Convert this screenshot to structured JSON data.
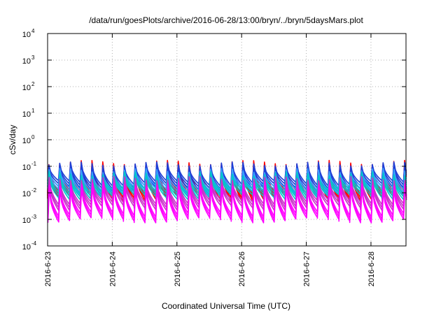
{
  "chart_data": {
    "type": "line",
    "title": "/data/run/goesPlots/archive/2016-06-28/13:00/bryn/../bryn/5daysMars.plot",
    "xlabel": "Coordinated Universal Time (UTC)",
    "ylabel": "cSv/day",
    "yscale": "log",
    "ylim": [
      0.0001,
      10000
    ],
    "xlim": [
      "2016-06-23 00:00",
      "2016-06-28 13:00"
    ],
    "grid": true,
    "x_ticks": [
      "2016-6-23",
      "2016-6-24",
      "2016-6-25",
      "2016-6-26",
      "2016-6-27",
      "2016-6-28"
    ],
    "y_ticks": [
      {
        "base": "10",
        "exp": "-4"
      },
      {
        "base": "10",
        "exp": "-3"
      },
      {
        "base": "10",
        "exp": "-2"
      },
      {
        "base": "10",
        "exp": "-1"
      },
      {
        "base": "10",
        "exp": "0"
      },
      {
        "base": "10",
        "exp": "1"
      },
      {
        "base": "10",
        "exp": "2"
      },
      {
        "base": "10",
        "exp": "3"
      },
      {
        "base": "10",
        "exp": "4"
      }
    ],
    "pattern": {
      "description_free": true,
      "peak_interval_hours": 4,
      "series": [
        {
          "color": "#ff0000",
          "peak": 0.12,
          "trough": 0.008
        },
        {
          "color": "#1f3fd6",
          "peak": 0.105,
          "trough": 0.018
        },
        {
          "color": "#3aa0ff",
          "peak": 0.06,
          "trough": 0.012
        },
        {
          "color": "#00c8c8",
          "peak": 0.045,
          "trough": 0.009
        },
        {
          "color": "#c832c8",
          "peak": 0.03,
          "trough": 0.0035
        },
        {
          "color": "#ff00ff",
          "peak": 0.018,
          "trough": 0.0012
        }
      ]
    }
  }
}
